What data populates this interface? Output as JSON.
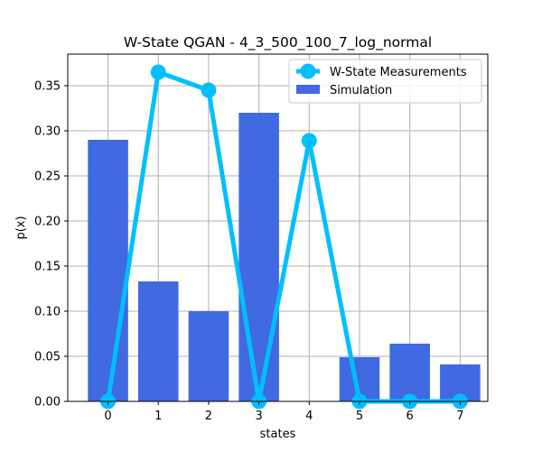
{
  "chart_data": {
    "type": "bar",
    "title": "W-State QGAN - 4_3_500_100_7_log_normal",
    "xlabel": "states",
    "ylabel": "p(x)",
    "categories": [
      "0",
      "1",
      "2",
      "3",
      "4",
      "5",
      "6",
      "7"
    ],
    "ylim": [
      0,
      0.385
    ],
    "xlim": [
      -0.8,
      7.55
    ],
    "yticks": [
      "0.00",
      "0.05",
      "0.10",
      "0.15",
      "0.20",
      "0.25",
      "0.30",
      "0.35"
    ],
    "grid": true,
    "legend_position": "top-right",
    "series": [
      {
        "name": "W-State Measurements",
        "kind": "line",
        "color": "#00bfff",
        "values": [
          0.0,
          0.365,
          0.345,
          0.0,
          0.289,
          0.0,
          0.0,
          0.0
        ]
      },
      {
        "name": "Simulation",
        "kind": "bar",
        "color": "#4169e1",
        "values": [
          0.29,
          0.133,
          0.1,
          0.32,
          0.0,
          0.049,
          0.064,
          0.041
        ]
      }
    ]
  }
}
